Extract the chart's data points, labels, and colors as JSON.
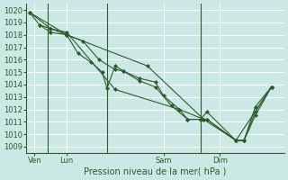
{
  "bg_color": "#cce8e4",
  "grid_color": "#ffffff",
  "line_color": "#2d5a2d",
  "marker_color": "#2d5a2d",
  "ylabel_ticks": [
    1009,
    1010,
    1011,
    1012,
    1013,
    1014,
    1015,
    1016,
    1017,
    1018,
    1019,
    1020
  ],
  "ylim": [
    1008.5,
    1020.5
  ],
  "xlabel": "Pression niveau de la mer( hPa )",
  "xtick_labels": [
    "Ven",
    "Lun",
    "Sam",
    "Dim"
  ],
  "xtick_positions": [
    0.5,
    2.5,
    8.5,
    12.0
  ],
  "vline_positions": [
    1.3,
    5.0,
    10.8
  ],
  "xlim": [
    0.0,
    16.0
  ],
  "lines": [
    [
      0.2,
      1019.8,
      0.8,
      1018.8,
      1.5,
      1018.5,
      2.5,
      1018.0,
      3.2,
      1016.5,
      4.0,
      1015.8,
      4.7,
      1015.0,
      5.0,
      1013.7,
      5.5,
      1015.5,
      6.0,
      1015.1,
      7.0,
      1014.5,
      8.0,
      1014.2,
      8.5,
      1013.1,
      9.5,
      1012.0,
      10.0,
      1011.2,
      10.8,
      1011.2,
      11.2,
      1011.2,
      13.0,
      1009.5,
      13.5,
      1009.5,
      14.2,
      1011.8,
      15.2,
      1013.8
    ],
    [
      0.8,
      1018.8,
      1.5,
      1018.2,
      2.5,
      1018.0,
      3.5,
      1017.5,
      4.5,
      1016.0,
      5.5,
      1015.2,
      6.0,
      1015.1,
      7.0,
      1014.3,
      8.0,
      1013.8,
      9.0,
      1012.3,
      10.0,
      1011.2,
      10.8,
      1011.2,
      11.2,
      1011.8,
      13.0,
      1009.5,
      13.5,
      1009.5,
      14.2,
      1012.2,
      15.2,
      1013.8
    ],
    [
      0.2,
      1019.8,
      1.5,
      1018.5,
      2.5,
      1018.2,
      5.5,
      1013.6,
      9.5,
      1012.0,
      11.0,
      1011.2,
      11.2,
      1011.2,
      13.0,
      1009.5,
      13.5,
      1009.5,
      14.2,
      1011.5,
      15.2,
      1013.8
    ],
    [
      0.2,
      1019.8,
      2.5,
      1018.0,
      7.5,
      1015.5,
      11.0,
      1011.2,
      13.0,
      1009.5,
      15.2,
      1013.8
    ]
  ],
  "tick_fontsize": 6,
  "xlabel_fontsize": 7,
  "tick_color": "#2d5a2d",
  "spine_color": "#2d5a2d"
}
